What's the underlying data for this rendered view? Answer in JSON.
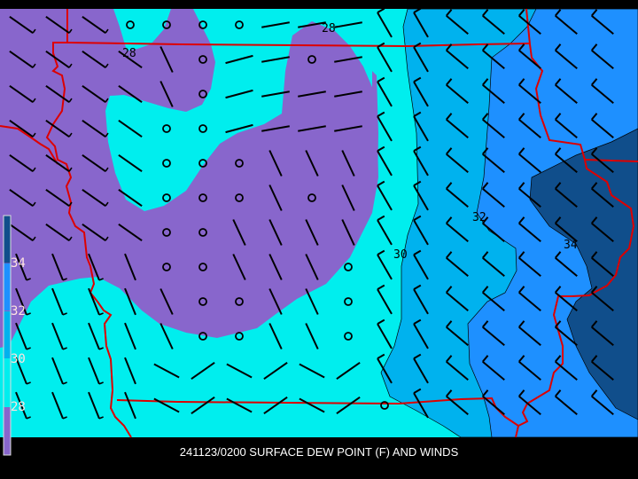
{
  "title": "241123/0200 SURFACE DEW POINT (F) AND WINDS",
  "colors": {
    "band_below_28": "#8866cc",
    "band_28_30": "#00eeee",
    "band_30_32": "#00b2ee",
    "band_32_34": "#1e90ff",
    "band_above_34": "#104e8b",
    "borders": "#dd0000",
    "background": "#000000"
  },
  "legend": {
    "labels": [
      "34",
      "32",
      "30",
      "28"
    ]
  },
  "contour_labels": [
    "28",
    "28",
    "30",
    "32",
    "34"
  ],
  "units": "F"
}
